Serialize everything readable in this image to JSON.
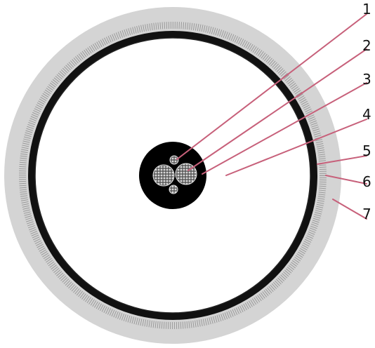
{
  "diagram": {
    "labels": [
      {
        "id": "1",
        "text": "1"
      },
      {
        "id": "2",
        "text": "2"
      },
      {
        "id": "3",
        "text": "3"
      },
      {
        "id": "4",
        "text": "4"
      },
      {
        "id": "5",
        "text": "5"
      },
      {
        "id": "6",
        "text": "6"
      },
      {
        "id": "7",
        "text": "7"
      }
    ],
    "colors": {
      "leader_lines": "#c7607a",
      "outer_sheath": "#d4d4d4",
      "armour_layer": "#111111",
      "core_fill": "#000000",
      "conductor": "#bdbdbd",
      "background": "#ffffff"
    }
  }
}
